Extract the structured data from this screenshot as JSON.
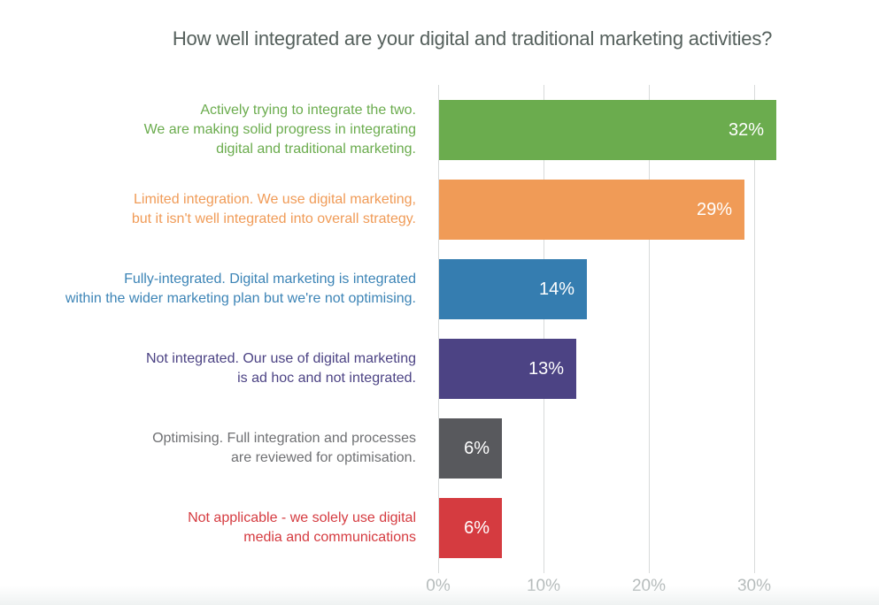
{
  "chart_data": {
    "type": "bar",
    "orientation": "horizontal",
    "title": "How well integrated are your digital and traditional marketing activities?",
    "categories": [
      "Actively trying to integrate the two.\nWe are making solid progress in integrating\ndigital and traditional marketing.",
      "Limited integration. We use digital marketing,\nbut it isn't well integrated into overall strategy.",
      "Fully-integrated. Digital marketing is integrated\nwithin the wider marketing plan but we're not optimising.",
      "Not integrated. Our use of digital marketing\nis ad hoc and not integrated.",
      "Optimising. Full integration and processes\nare reviewed for optimisation.",
      "Not applicable - we solely use digital\nmedia and communications"
    ],
    "values": [
      32,
      29,
      14,
      13,
      6,
      6
    ],
    "value_labels": [
      "32%",
      "29%",
      "14%",
      "13%",
      "6%",
      "6%"
    ],
    "bar_colors": [
      "#6bac4e",
      "#f09b57",
      "#357db0",
      "#4c4384",
      "#58595d",
      "#d53b40"
    ],
    "label_colors": [
      "#6bac4e",
      "#f09b57",
      "#3c84b6",
      "#4c4384",
      "#6f7073",
      "#d53b40"
    ],
    "x_tick_labels": [
      "0%",
      "10%",
      "20%",
      "30%"
    ],
    "xlabel": "",
    "ylabel": "",
    "xlim": [
      0,
      35
    ],
    "grid": "vertical gridlines at 10% intervals",
    "legend": "none",
    "value_label_color": "#ffffff",
    "title_color": "#55605c",
    "tick_label_color": "#b4baba",
    "gridline_color": "#d8dbdb"
  }
}
